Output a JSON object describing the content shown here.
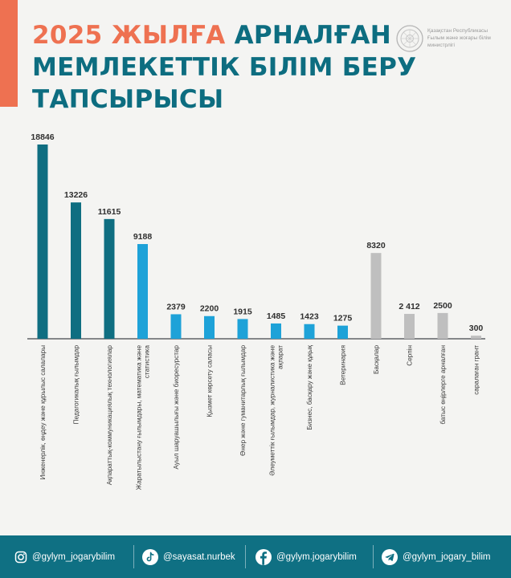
{
  "header": {
    "title_highlight": "2025 ЖЫЛҒА",
    "title_rest": "АРНАЛҒАН",
    "title_line2": "МЕМЛЕКЕТТІК БІЛІМ БЕРУ",
    "title_line3": "ТАПСЫРЫСЫ",
    "ministry_line1": "Қазақстан Республикасы",
    "ministry_line2": "Ғылым және жоғары білім",
    "ministry_line3": "министрлігі"
  },
  "chart_data": {
    "type": "bar",
    "title": "2025 ЖЫЛҒА АРНАЛҒАН МЕМЛЕКЕТТІК БІЛІМ БЕРУ ТАПСЫРЫСЫ",
    "categories": [
      "Инженерлік, өңдеу және құрылыс салалары",
      "Педагогикалық ғылымдар",
      "Ақпараттық-коммуникациялық технологиялар",
      "Жаратылыстану ғылымдары, математика және статистика",
      "Ауыл шаруашылығы және биоресурстар",
      "Қызмет көрсету саласы",
      "Өнер және гуманитарлық ғылымдар",
      "Әлеуметтік ғылымдар, журналистика және ақпарат",
      "Бизнес, басқару және құқық",
      "Ветеринария",
      "Басқалар",
      "Серпін",
      "батыс өңірлерге арналған",
      "саралаған грант"
    ],
    "values": [
      18846,
      13226,
      11615,
      9188,
      2379,
      2200,
      1915,
      1485,
      1423,
      1275,
      8320,
      2412,
      2500,
      300
    ],
    "value_labels": [
      "18846",
      "13226",
      "11615",
      "9188",
      "2379",
      "2200",
      "1915",
      "1485",
      "1423",
      "1275",
      "8320",
      "2 412",
      "2500",
      "300"
    ],
    "bar_colors": [
      "#0f6e81",
      "#0f6e81",
      "#0f6e81",
      "#1ea2d8",
      "#1ea2d8",
      "#1ea2d8",
      "#1ea2d8",
      "#1ea2d8",
      "#1ea2d8",
      "#1ea2d8",
      "#bfbfbf",
      "#bfbfbf",
      "#bfbfbf",
      "#bfbfbf"
    ],
    "ylim": [
      0,
      18846
    ],
    "xlabel": "",
    "ylabel": "",
    "grid": false,
    "legend": "none"
  },
  "footer": {
    "items": [
      {
        "icon": "instagram-icon",
        "label": "@gylym_jogarybilim"
      },
      {
        "icon": "tiktok-icon",
        "label": "@sayasat.nurbek"
      },
      {
        "icon": "facebook-icon",
        "label": "@gylym.jogarybilim"
      },
      {
        "icon": "telegram-icon",
        "label": "@gylym_jogary_bilim"
      }
    ]
  },
  "colors": {
    "accent": "#ee7151",
    "brand": "#0d6d80",
    "footer": "#0f7083",
    "background": "#f4f4f2"
  }
}
